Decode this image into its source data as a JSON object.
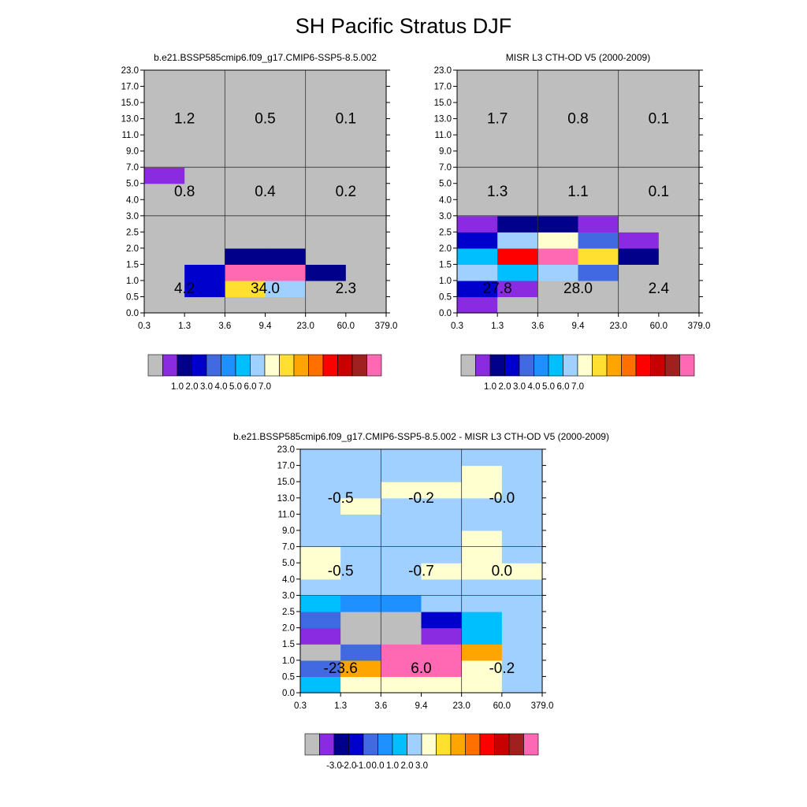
{
  "title": "SH Pacific Stratus DJF",
  "axes": {
    "y_ticks": [
      "0.0",
      "0.5",
      "1.0",
      "1.5",
      "2.0",
      "2.5",
      "3.0",
      "4.0",
      "5.0",
      "7.0",
      "9.0",
      "11.0",
      "13.0",
      "15.0",
      "17.0",
      "23.0"
    ],
    "x_ticks": [
      "0.3",
      "1.3",
      "3.6",
      "9.4",
      "23.0",
      "60.0",
      "379.0"
    ]
  },
  "colors": {
    "missing": "#bebebe",
    "palette": [
      "#bebebe",
      "#8a2be2",
      "#00008b",
      "#0000cd",
      "#4169e1",
      "#1e90ff",
      "#00bfff",
      "#a0d0ff",
      "#ffffd0",
      "#ffe030",
      "#ffa500",
      "#ff7000",
      "#ff0000",
      "#c80000",
      "#a02020",
      "#ff69b4"
    ]
  },
  "chart_data": [
    {
      "id": "model",
      "type": "heatmap",
      "title": "b.e21.BSSP585cmip6.f09_g17.CMIP6-SSP5-8.5.002",
      "x_bins": [
        "0.3",
        "1.3",
        "3.6",
        "9.4",
        "23.0",
        "60.0",
        "379.0"
      ],
      "y_bins": [
        "0.0",
        "0.5",
        "1.0",
        "1.5",
        "2.0",
        "2.5",
        "3.0",
        "4.0",
        "5.0",
        "7.0",
        "9.0",
        "11.0",
        "13.0",
        "15.0",
        "17.0",
        "23.0"
      ],
      "grid": [
        [
          "missing",
          "missing",
          "missing",
          "missing",
          "missing",
          "missing"
        ],
        [
          "missing",
          "#0000cd",
          "#ffe030",
          "#a0d0ff",
          "missing",
          "missing"
        ],
        [
          "missing",
          "#0000cd",
          "#ff69b4",
          "#ff69b4",
          "#00008b",
          "missing"
        ],
        [
          "missing",
          "missing",
          "#00008b",
          "#00008b",
          "missing",
          "missing"
        ],
        [
          "missing",
          "missing",
          "missing",
          "missing",
          "missing",
          "missing"
        ],
        [
          "missing",
          "missing",
          "missing",
          "missing",
          "missing",
          "missing"
        ],
        [
          "missing",
          "missing",
          "missing",
          "missing",
          "missing",
          "missing"
        ],
        [
          "missing",
          "missing",
          "missing",
          "missing",
          "missing",
          "missing"
        ],
        [
          "#8a2be2",
          "missing",
          "missing",
          "missing",
          "missing",
          "missing"
        ],
        [
          "missing",
          "missing",
          "missing",
          "missing",
          "missing",
          "missing"
        ],
        [
          "missing",
          "missing",
          "missing",
          "missing",
          "missing",
          "missing"
        ],
        [
          "missing",
          "missing",
          "missing",
          "missing",
          "missing",
          "missing"
        ],
        [
          "missing",
          "missing",
          "missing",
          "missing",
          "missing",
          "missing"
        ],
        [
          "missing",
          "missing",
          "missing",
          "missing",
          "missing",
          "missing"
        ],
        [
          "missing",
          "missing",
          "missing",
          "missing",
          "missing",
          "missing"
        ]
      ],
      "region_values": [
        [
          "4.2",
          "34.0",
          "2.3"
        ],
        [
          "0.8",
          "0.4",
          "0.2"
        ],
        [
          "1.2",
          "0.5",
          "0.1"
        ]
      ],
      "colorbar": {
        "colors": [
          "#bebebe",
          "#8a2be2",
          "#00008b",
          "#0000cd",
          "#4169e1",
          "#1e90ff",
          "#00bfff",
          "#a0d0ff",
          "#ffffd0",
          "#ffe030",
          "#ffa500",
          "#ff7000",
          "#ff0000",
          "#c80000",
          "#a02020",
          "#ff69b4"
        ],
        "labels": [
          "1.0",
          "2.0",
          "3.0",
          "4.0",
          "5.0",
          "6.0",
          "7.0"
        ]
      }
    },
    {
      "id": "obs",
      "type": "heatmap",
      "title": "MISR L3 CTH-OD V5 (2000-2009)",
      "x_bins": [
        "0.3",
        "1.3",
        "3.6",
        "9.4",
        "23.0",
        "60.0",
        "379.0"
      ],
      "y_bins": [
        "0.0",
        "0.5",
        "1.0",
        "1.5",
        "2.0",
        "2.5",
        "3.0",
        "4.0",
        "5.0",
        "7.0",
        "9.0",
        "11.0",
        "13.0",
        "15.0",
        "17.0",
        "23.0"
      ],
      "grid": [
        [
          "#8a2be2",
          "missing",
          "missing",
          "missing",
          "missing",
          "missing"
        ],
        [
          "#0000cd",
          "#8a2be2",
          "missing",
          "missing",
          "missing",
          "missing"
        ],
        [
          "#a0d0ff",
          "#00bfff",
          "#a0d0ff",
          "#4169e1",
          "missing",
          "missing"
        ],
        [
          "#00bfff",
          "#ff0000",
          "#ff69b4",
          "#ffe030",
          "#00008b",
          "missing"
        ],
        [
          "#0000cd",
          "#a0d0ff",
          "#ffffd0",
          "#4169e1",
          "#8a2be2",
          "missing"
        ],
        [
          "#8a2be2",
          "#00008b",
          "#00008b",
          "#8a2be2",
          "missing",
          "missing"
        ],
        [
          "missing",
          "missing",
          "missing",
          "missing",
          "missing",
          "missing"
        ],
        [
          "missing",
          "missing",
          "missing",
          "missing",
          "missing",
          "missing"
        ],
        [
          "missing",
          "missing",
          "missing",
          "missing",
          "missing",
          "missing"
        ],
        [
          "missing",
          "missing",
          "missing",
          "missing",
          "missing",
          "missing"
        ],
        [
          "missing",
          "missing",
          "missing",
          "missing",
          "missing",
          "missing"
        ],
        [
          "missing",
          "missing",
          "missing",
          "missing",
          "missing",
          "missing"
        ],
        [
          "missing",
          "missing",
          "missing",
          "missing",
          "missing",
          "missing"
        ],
        [
          "missing",
          "missing",
          "missing",
          "missing",
          "missing",
          "missing"
        ],
        [
          "missing",
          "missing",
          "missing",
          "missing",
          "missing",
          "missing"
        ]
      ],
      "region_values": [
        [
          "27.8",
          "28.0",
          "2.4"
        ],
        [
          "1.3",
          "1.1",
          "0.1"
        ],
        [
          "1.7",
          "0.8",
          "0.1"
        ]
      ],
      "colorbar": {
        "colors": [
          "#bebebe",
          "#8a2be2",
          "#00008b",
          "#0000cd",
          "#4169e1",
          "#1e90ff",
          "#00bfff",
          "#a0d0ff",
          "#ffffd0",
          "#ffe030",
          "#ffa500",
          "#ff7000",
          "#ff0000",
          "#c80000",
          "#a02020",
          "#ff69b4"
        ],
        "labels": [
          "1.0",
          "2.0",
          "3.0",
          "4.0",
          "5.0",
          "6.0",
          "7.0"
        ]
      }
    },
    {
      "id": "diff",
      "type": "heatmap",
      "title": "b.e21.BSSP585cmip6.f09_g17.CMIP6-SSP5-8.5.002 - MISR L3 CTH-OD V5 (2000-2009)",
      "x_bins": [
        "0.3",
        "1.3",
        "3.6",
        "9.4",
        "23.0",
        "60.0",
        "379.0"
      ],
      "y_bins": [
        "0.0",
        "0.5",
        "1.0",
        "1.5",
        "2.0",
        "2.5",
        "3.0",
        "4.0",
        "5.0",
        "7.0",
        "9.0",
        "11.0",
        "13.0",
        "15.0",
        "17.0",
        "23.0"
      ],
      "grid": [
        [
          "#00bfff",
          "#ffffd0",
          "#ffffd0",
          "#ffffd0",
          "#ffffd0",
          "#a0d0ff"
        ],
        [
          "#4169e1",
          "#ffa500",
          "#ff69b4",
          "#ff69b4",
          "#ffffd0",
          "#a0d0ff"
        ],
        [
          "#bebebe",
          "#4169e1",
          "#ff69b4",
          "#ff69b4",
          "#ffa500",
          "#a0d0ff"
        ],
        [
          "#8a2be2",
          "#bebebe",
          "#bebebe",
          "#8a2be2",
          "#00bfff",
          "#a0d0ff"
        ],
        [
          "#4169e1",
          "#bebebe",
          "#bebebe",
          "#0000cd",
          "#00bfff",
          "#a0d0ff"
        ],
        [
          "#00bfff",
          "#1e90ff",
          "#1e90ff",
          "#a0d0ff",
          "#a0d0ff",
          "#a0d0ff"
        ],
        [
          "#a0d0ff",
          "#a0d0ff",
          "#a0d0ff",
          "#a0d0ff",
          "#a0d0ff",
          "#a0d0ff"
        ],
        [
          "#ffffd0",
          "#a0d0ff",
          "#a0d0ff",
          "#ffffd0",
          "#ffffd0",
          "#ffffd0"
        ],
        [
          "#ffffd0",
          "#a0d0ff",
          "#a0d0ff",
          "#a0d0ff",
          "#ffffd0",
          "#a0d0ff"
        ],
        [
          "#a0d0ff",
          "#a0d0ff",
          "#a0d0ff",
          "#a0d0ff",
          "#ffffd0",
          "#a0d0ff"
        ],
        [
          "#a0d0ff",
          "#a0d0ff",
          "#a0d0ff",
          "#a0d0ff",
          "#a0d0ff",
          "#a0d0ff"
        ],
        [
          "#a0d0ff",
          "#ffffd0",
          "#a0d0ff",
          "#a0d0ff",
          "#a0d0ff",
          "#a0d0ff"
        ],
        [
          "#a0d0ff",
          "#a0d0ff",
          "#ffffd0",
          "#ffffd0",
          "#ffffd0",
          "#a0d0ff"
        ],
        [
          "#a0d0ff",
          "#a0d0ff",
          "#a0d0ff",
          "#a0d0ff",
          "#ffffd0",
          "#a0d0ff"
        ],
        [
          "#a0d0ff",
          "#a0d0ff",
          "#a0d0ff",
          "#a0d0ff",
          "#a0d0ff",
          "#a0d0ff"
        ]
      ],
      "region_values": [
        [
          "-23.6",
          "6.0",
          "-0.2"
        ],
        [
          "-0.5",
          "-0.7",
          "0.0"
        ],
        [
          "-0.5",
          "-0.2",
          "-0.0"
        ]
      ],
      "colorbar": {
        "colors": [
          "#bebebe",
          "#8a2be2",
          "#00008b",
          "#0000cd",
          "#4169e1",
          "#1e90ff",
          "#00bfff",
          "#a0d0ff",
          "#ffffd0",
          "#ffe030",
          "#ffa500",
          "#ff7000",
          "#ff0000",
          "#c80000",
          "#a02020",
          "#ff69b4"
        ],
        "labels": [
          "-3.0",
          "-2.0",
          "-1.0",
          "0.0",
          "1.0",
          "2.0",
          "3.0"
        ]
      }
    }
  ]
}
